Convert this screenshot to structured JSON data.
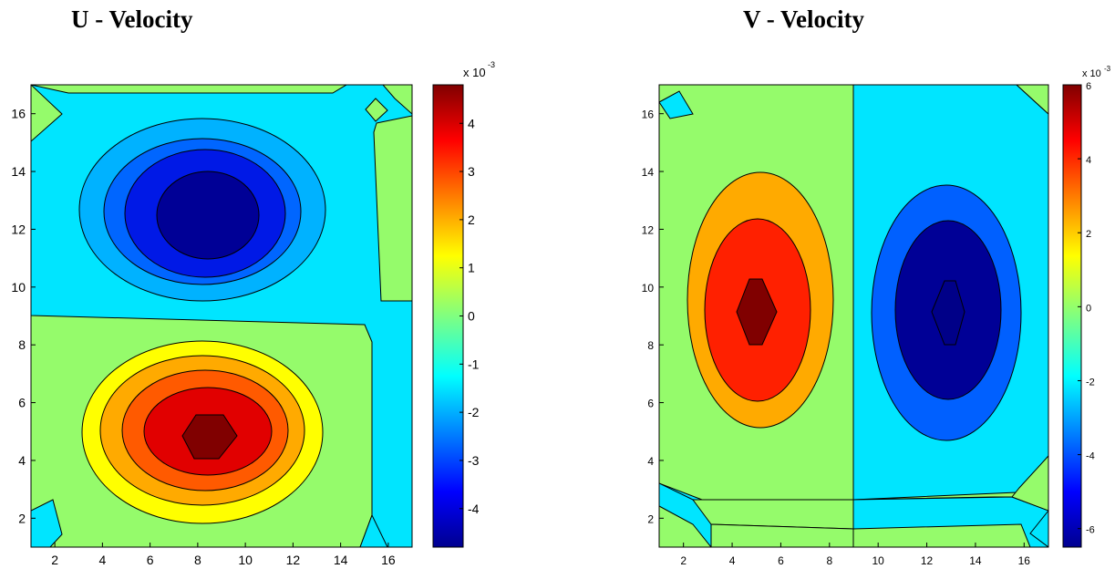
{
  "chart_data": [
    {
      "type": "contour",
      "title": "U - Velocity",
      "xlim": [
        1,
        17
      ],
      "ylim": [
        1,
        17
      ],
      "x_ticks": [
        2,
        4,
        6,
        8,
        10,
        12,
        14,
        16
      ],
      "y_ticks": [
        2,
        4,
        6,
        8,
        10,
        12,
        14,
        16
      ],
      "colorbar": {
        "range": [
          -0.0048,
          0.0048
        ],
        "ticks": [
          -4,
          -3,
          -2,
          -1,
          0,
          1,
          2,
          3,
          4
        ],
        "multiplier": "x 10",
        "exponent": "-3"
      },
      "features": [
        {
          "kind": "minimum",
          "x": 8.5,
          "y": 12.5,
          "value": -0.0047
        },
        {
          "kind": "maximum",
          "x": 8.5,
          "y": 4.9,
          "value": 0.0047
        }
      ]
    },
    {
      "type": "contour",
      "title": "V - Velocity",
      "xlim": [
        1,
        17
      ],
      "ylim": [
        1,
        17
      ],
      "x_ticks": [
        2,
        4,
        6,
        8,
        10,
        12,
        14,
        16
      ],
      "y_ticks": [
        2,
        4,
        6,
        8,
        10,
        12,
        14,
        16
      ],
      "colorbar": {
        "range": [
          -0.0065,
          0.006
        ],
        "ticks": [
          -6,
          -4,
          -2,
          0,
          2,
          4,
          6
        ],
        "multiplier": "x 10",
        "exponent": "-3"
      },
      "features": [
        {
          "kind": "maximum",
          "x": 5,
          "y": 9,
          "value": 0.0058
        },
        {
          "kind": "minimum",
          "x": 13,
          "y": 9,
          "value": -0.0062
        }
      ]
    }
  ]
}
